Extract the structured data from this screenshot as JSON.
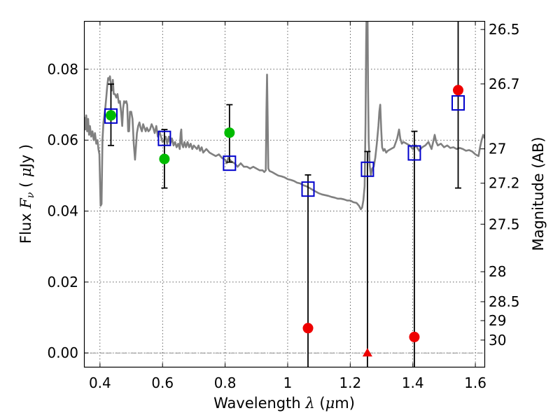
{
  "chart_data": {
    "type": "scatter",
    "xlabel": {
      "prefix": "Wavelength",
      "symbol": "λ",
      "unit_open": "(",
      "unit_mu": "μ",
      "unit_rest": "m)"
    },
    "ylabel": {
      "prefix": "Flux",
      "symbol": "F",
      "subscript": "ν",
      "unit_open": "(",
      "unit_mu": "μ",
      "unit_rest": "Jy",
      "unit_close": ")"
    },
    "y2label": "Magnitude (AB)",
    "xlim": [
      0.35,
      1.63
    ],
    "ylim": [
      -0.004,
      0.0935
    ],
    "grid": true,
    "x_ticks": [
      {
        "value": 0.4,
        "label": "0.4"
      },
      {
        "value": 0.6,
        "label": "0.6"
      },
      {
        "value": 0.8,
        "label": "0.8"
      },
      {
        "value": 1.0,
        "label": "1"
      },
      {
        "value": 1.2,
        "label": "1.2"
      },
      {
        "value": 1.4,
        "label": "1.4"
      },
      {
        "value": 1.6,
        "label": "1.6"
      }
    ],
    "y_ticks": [
      {
        "value": 0.0,
        "label": "0.00"
      },
      {
        "value": 0.02,
        "label": "0.02"
      },
      {
        "value": 0.04,
        "label": "0.04"
      },
      {
        "value": 0.06,
        "label": "0.06"
      },
      {
        "value": 0.08,
        "label": "0.08"
      }
    ],
    "mag_ticks": [
      {
        "value": 26.5,
        "label": "26.5"
      },
      {
        "value": 26.7,
        "label": "26.7"
      },
      {
        "value": 27,
        "label": "27"
      },
      {
        "value": 27.2,
        "label": "27.2"
      },
      {
        "value": 27.5,
        "label": "27.5"
      },
      {
        "value": 28,
        "label": "28"
      },
      {
        "value": 28.5,
        "label": "28.5"
      },
      {
        "value": 29,
        "label": "29"
      },
      {
        "value": 30,
        "label": "30"
      }
    ],
    "model_spectrum": {
      "color": "#808080",
      "points": [
        [
          0.35,
          0.0665
        ],
        [
          0.353,
          0.063
        ],
        [
          0.356,
          0.067
        ],
        [
          0.359,
          0.0625
        ],
        [
          0.362,
          0.066
        ],
        [
          0.365,
          0.0615
        ],
        [
          0.368,
          0.064
        ],
        [
          0.372,
          0.061
        ],
        [
          0.376,
          0.0625
        ],
        [
          0.38,
          0.06
        ],
        [
          0.384,
          0.062
        ],
        [
          0.388,
          0.059
        ],
        [
          0.392,
          0.06
        ],
        [
          0.395,
          0.0575
        ],
        [
          0.398,
          0.056
        ],
        [
          0.4,
          0.049
        ],
        [
          0.402,
          0.0415
        ],
        [
          0.405,
          0.042
        ],
        [
          0.408,
          0.06
        ],
        [
          0.411,
          0.065
        ],
        [
          0.414,
          0.067
        ],
        [
          0.417,
          0.069
        ],
        [
          0.42,
          0.072
        ],
        [
          0.423,
          0.075
        ],
        [
          0.426,
          0.0775
        ],
        [
          0.429,
          0.077
        ],
        [
          0.432,
          0.078
        ],
        [
          0.435,
          0.0755
        ],
        [
          0.438,
          0.074
        ],
        [
          0.441,
          0.077
        ],
        [
          0.444,
          0.073
        ],
        [
          0.448,
          0.073
        ],
        [
          0.452,
          0.072
        ],
        [
          0.456,
          0.073
        ],
        [
          0.46,
          0.0705
        ],
        [
          0.464,
          0.071
        ],
        [
          0.468,
          0.0675
        ],
        [
          0.471,
          0.064
        ],
        [
          0.474,
          0.069
        ],
        [
          0.477,
          0.071
        ],
        [
          0.48,
          0.0705
        ],
        [
          0.484,
          0.071
        ],
        [
          0.487,
          0.07
        ],
        [
          0.49,
          0.0625
        ],
        [
          0.493,
          0.0625
        ],
        [
          0.496,
          0.068
        ],
        [
          0.5,
          0.068
        ],
        [
          0.504,
          0.066
        ],
        [
          0.508,
          0.059
        ],
        [
          0.512,
          0.0545
        ],
        [
          0.515,
          0.058
        ],
        [
          0.518,
          0.062
        ],
        [
          0.522,
          0.064
        ],
        [
          0.526,
          0.065
        ],
        [
          0.53,
          0.0635
        ],
        [
          0.534,
          0.0625
        ],
        [
          0.538,
          0.0645
        ],
        [
          0.542,
          0.0635
        ],
        [
          0.546,
          0.0625
        ],
        [
          0.55,
          0.0635
        ],
        [
          0.555,
          0.0625
        ],
        [
          0.56,
          0.063
        ],
        [
          0.565,
          0.0645
        ],
        [
          0.57,
          0.0635
        ],
        [
          0.575,
          0.062
        ],
        [
          0.58,
          0.064
        ],
        [
          0.585,
          0.061
        ],
        [
          0.59,
          0.0625
        ],
        [
          0.595,
          0.061
        ],
        [
          0.6,
          0.0595
        ],
        [
          0.605,
          0.06
        ],
        [
          0.61,
          0.061
        ],
        [
          0.615,
          0.059
        ],
        [
          0.62,
          0.061
        ],
        [
          0.625,
          0.059
        ],
        [
          0.63,
          0.0605
        ],
        [
          0.635,
          0.0585
        ],
        [
          0.64,
          0.0595
        ],
        [
          0.645,
          0.058
        ],
        [
          0.65,
          0.059
        ],
        [
          0.655,
          0.0575
        ],
        [
          0.658,
          0.062
        ],
        [
          0.66,
          0.063
        ],
        [
          0.662,
          0.059
        ],
        [
          0.666,
          0.058
        ],
        [
          0.67,
          0.0595
        ],
        [
          0.675,
          0.058
        ],
        [
          0.68,
          0.0595
        ],
        [
          0.685,
          0.058
        ],
        [
          0.69,
          0.059
        ],
        [
          0.695,
          0.0575
        ],
        [
          0.7,
          0.0585
        ],
        [
          0.705,
          0.058
        ],
        [
          0.71,
          0.0575
        ],
        [
          0.715,
          0.0585
        ],
        [
          0.72,
          0.057
        ],
        [
          0.725,
          0.058
        ],
        [
          0.73,
          0.0565
        ],
        [
          0.74,
          0.0575
        ],
        [
          0.75,
          0.0565
        ],
        [
          0.76,
          0.056
        ],
        [
          0.77,
          0.0555
        ],
        [
          0.78,
          0.056
        ],
        [
          0.79,
          0.055
        ],
        [
          0.8,
          0.0545
        ],
        [
          0.805,
          0.0535
        ],
        [
          0.81,
          0.055
        ],
        [
          0.82,
          0.054
        ],
        [
          0.83,
          0.0535
        ],
        [
          0.84,
          0.0525
        ],
        [
          0.85,
          0.0535
        ],
        [
          0.86,
          0.0525
        ],
        [
          0.87,
          0.0525
        ],
        [
          0.88,
          0.052
        ],
        [
          0.89,
          0.0525
        ],
        [
          0.9,
          0.052
        ],
        [
          0.91,
          0.0515
        ],
        [
          0.92,
          0.0515
        ],
        [
          0.925,
          0.051
        ],
        [
          0.93,
          0.0515
        ],
        [
          0.932,
          0.068
        ],
        [
          0.934,
          0.0785
        ],
        [
          0.936,
          0.066
        ],
        [
          0.938,
          0.052
        ],
        [
          0.942,
          0.0513
        ],
        [
          0.95,
          0.051
        ],
        [
          0.96,
          0.0505
        ],
        [
          0.97,
          0.05
        ],
        [
          0.98,
          0.0498
        ],
        [
          0.99,
          0.0495
        ],
        [
          1.0,
          0.049
        ],
        [
          1.01,
          0.0488
        ],
        [
          1.02,
          0.0485
        ],
        [
          1.03,
          0.048
        ],
        [
          1.04,
          0.0478
        ],
        [
          1.05,
          0.0473
        ],
        [
          1.06,
          0.047
        ],
        [
          1.07,
          0.0465
        ],
        [
          1.08,
          0.046
        ],
        [
          1.09,
          0.0455
        ],
        [
          1.1,
          0.045
        ],
        [
          1.11,
          0.0447
        ],
        [
          1.12,
          0.0445
        ],
        [
          1.13,
          0.0443
        ],
        [
          1.14,
          0.044
        ],
        [
          1.15,
          0.0438
        ],
        [
          1.16,
          0.0435
        ],
        [
          1.17,
          0.0435
        ],
        [
          1.18,
          0.0433
        ],
        [
          1.19,
          0.043
        ],
        [
          1.2,
          0.043
        ],
        [
          1.21,
          0.0425
        ],
        [
          1.22,
          0.0423
        ],
        [
          1.228,
          0.0415
        ],
        [
          1.234,
          0.0405
        ],
        [
          1.238,
          0.041
        ],
        [
          1.242,
          0.043
        ],
        [
          1.246,
          0.047
        ],
        [
          1.249,
          0.065
        ],
        [
          1.251,
          0.088
        ],
        [
          1.253,
          0.1
        ],
        [
          1.255,
          0.1
        ],
        [
          1.257,
          0.075
        ],
        [
          1.259,
          0.06
        ],
        [
          1.262,
          0.053
        ],
        [
          1.266,
          0.05
        ],
        [
          1.27,
          0.052
        ],
        [
          1.275,
          0.0525
        ],
        [
          1.28,
          0.055
        ],
        [
          1.285,
          0.059
        ],
        [
          1.29,
          0.064
        ],
        [
          1.293,
          0.068
        ],
        [
          1.296,
          0.07
        ],
        [
          1.299,
          0.063
        ],
        [
          1.302,
          0.058
        ],
        [
          1.306,
          0.057
        ],
        [
          1.31,
          0.0575
        ],
        [
          1.315,
          0.0565
        ],
        [
          1.32,
          0.057
        ],
        [
          1.33,
          0.0575
        ],
        [
          1.34,
          0.058
        ],
        [
          1.35,
          0.0605
        ],
        [
          1.356,
          0.063
        ],
        [
          1.36,
          0.0605
        ],
        [
          1.365,
          0.059
        ],
        [
          1.37,
          0.0595
        ],
        [
          1.38,
          0.059
        ],
        [
          1.39,
          0.0585
        ],
        [
          1.4,
          0.0575
        ],
        [
          1.41,
          0.0585
        ],
        [
          1.42,
          0.057
        ],
        [
          1.43,
          0.058
        ],
        [
          1.44,
          0.0585
        ],
        [
          1.45,
          0.0595
        ],
        [
          1.46,
          0.0575
        ],
        [
          1.465,
          0.0595
        ],
        [
          1.47,
          0.0615
        ],
        [
          1.475,
          0.0595
        ],
        [
          1.48,
          0.0585
        ],
        [
          1.49,
          0.059
        ],
        [
          1.5,
          0.058
        ],
        [
          1.51,
          0.0585
        ],
        [
          1.52,
          0.0578
        ],
        [
          1.53,
          0.058
        ],
        [
          1.54,
          0.0575
        ],
        [
          1.55,
          0.0578
        ],
        [
          1.56,
          0.0575
        ],
        [
          1.57,
          0.057
        ],
        [
          1.58,
          0.0572
        ],
        [
          1.59,
          0.0568
        ],
        [
          1.6,
          0.056
        ],
        [
          1.61,
          0.0555
        ],
        [
          1.615,
          0.058
        ],
        [
          1.62,
          0.06
        ],
        [
          1.625,
          0.0615
        ],
        [
          1.63,
          0.0605
        ]
      ]
    },
    "model_bands": {
      "marker": "open square",
      "color": "#0000cc",
      "points": [
        {
          "x": 0.435,
          "y": 0.0668
        },
        {
          "x": 0.606,
          "y": 0.0605
        },
        {
          "x": 0.814,
          "y": 0.0535
        },
        {
          "x": 1.065,
          "y": 0.0462
        },
        {
          "x": 1.255,
          "y": 0.0518
        },
        {
          "x": 1.405,
          "y": 0.0564
        },
        {
          "x": 1.545,
          "y": 0.0705
        }
      ]
    },
    "detections": {
      "marker": "circle",
      "color": "#00bb00",
      "points": [
        {
          "x": 0.435,
          "y": 0.067,
          "err_low": 0.0585,
          "err_high": 0.0758
        },
        {
          "x": 0.606,
          "y": 0.0547,
          "err_low": 0.0465,
          "err_high": 0.063
        },
        {
          "x": 0.814,
          "y": 0.0621,
          "err_low": 0.0538,
          "err_high": 0.07
        }
      ]
    },
    "nir_measurements": {
      "marker": "circle",
      "color": "#ee0000",
      "points": [
        {
          "x": 1.065,
          "y": 0.007,
          "err_low": -0.01,
          "err_high": 0.0502
        },
        {
          "x": 1.405,
          "y": 0.0045,
          "err_low": -0.01,
          "err_high": 0.0625
        },
        {
          "x": 1.545,
          "y": 0.0741,
          "err_low": 0.0465,
          "err_high": 0.1
        }
      ]
    },
    "upper_limit": {
      "marker": "triangle",
      "color": "#ee0000",
      "x": 1.255,
      "y": 0.0,
      "err_low": -0.01,
      "err_high": 0.0568
    }
  }
}
